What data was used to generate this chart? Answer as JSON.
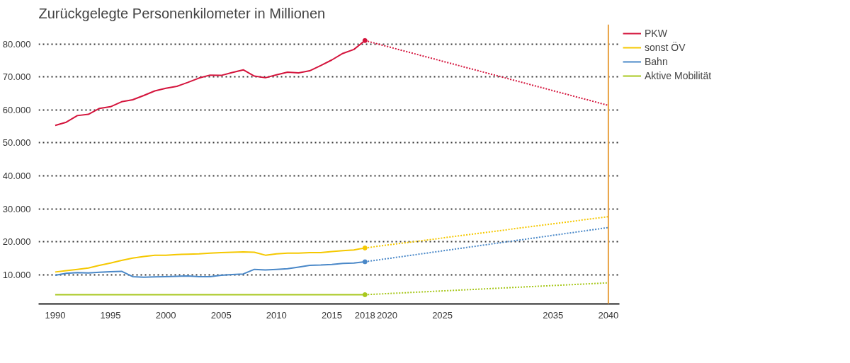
{
  "chart_data": {
    "type": "line",
    "title": "Zurückgelegte Personenkilometer in Millionen",
    "xlim": [
      1988.5,
      2041
    ],
    "xticks": [
      1990,
      1995,
      2000,
      2005,
      2010,
      2015,
      2018,
      2020,
      2025,
      2035,
      2040
    ],
    "ylim": [
      1100,
      86000
    ],
    "yticks": [
      {
        "value": 10000,
        "label": "10.000"
      },
      {
        "value": 20000,
        "label": "20.000"
      },
      {
        "value": 30000,
        "label": "30.000"
      },
      {
        "value": 40000,
        "label": "40.000"
      },
      {
        "value": 50000,
        "label": "50.000"
      },
      {
        "value": 60000,
        "label": "60.000"
      },
      {
        "value": 70000,
        "label": "70.000"
      },
      {
        "value": 80000,
        "label": "80.000"
      }
    ],
    "grid": "y",
    "legend": "top right",
    "line_style": "solid",
    "x": [
      1990,
      1991,
      1992,
      1993,
      1994,
      1995,
      1996,
      1997,
      1998,
      1999,
      2000,
      2001,
      2002,
      2003,
      2004,
      2005,
      2006,
      2007,
      2008,
      2009,
      2010,
      2011,
      2012,
      2013,
      2014,
      2015,
      2016,
      2017,
      2018,
      2040
    ],
    "series": [
      {
        "name": "PKW",
        "color": "#d4143c",
        "values": [
          55300,
          56300,
          58300,
          58700,
          60500,
          61000,
          62500,
          63100,
          64400,
          65800,
          66600,
          67200,
          68400,
          69700,
          70600,
          70500,
          71400,
          72200,
          70300,
          69800,
          70700,
          71500,
          71300,
          71900,
          73500,
          75200,
          77200,
          78400,
          81100,
          null
        ]
      },
      {
        "name": "sonst ÖV",
        "color": "#f5c800",
        "values": [
          10800,
          11200,
          11600,
          12000,
          12800,
          13500,
          14300,
          15000,
          15500,
          15900,
          15900,
          16100,
          16200,
          16300,
          16500,
          16700,
          16800,
          16900,
          16800,
          15900,
          16300,
          16500,
          16500,
          16700,
          16700,
          17000,
          17300,
          17500,
          18100,
          null
        ]
      },
      {
        "name": "Bahn",
        "color": "#4a88c8",
        "values": [
          9800,
          10400,
          10600,
          10500,
          10700,
          10900,
          11000,
          9400,
          9200,
          9300,
          9400,
          9500,
          9600,
          9400,
          9400,
          9800,
          10000,
          10200,
          11600,
          11400,
          11600,
          11800,
          12300,
          12800,
          12900,
          13100,
          13400,
          13500,
          13900,
          null
        ]
      },
      {
        "name": "Aktive Mobilität",
        "color": "#a8c81e",
        "values": [
          3900,
          3900,
          3900,
          3900,
          3900,
          3900,
          3900,
          3900,
          3900,
          3900,
          3900,
          3900,
          3900,
          3900,
          3900,
          3900,
          3900,
          3900,
          3900,
          3900,
          3900,
          3900,
          3900,
          3900,
          3900,
          3900,
          3900,
          3900,
          3900,
          null
        ]
      },
      {
        "color": "#d4143c",
        "line_style": "dotted",
        "values": [
          null,
          null,
          null,
          null,
          null,
          null,
          null,
          null,
          null,
          null,
          null,
          null,
          null,
          null,
          null,
          null,
          null,
          null,
          null,
          null,
          null,
          null,
          null,
          null,
          null,
          null,
          null,
          null,
          81100,
          61400
        ]
      },
      {
        "color": "#f5c800",
        "line_style": "dotted",
        "values": [
          null,
          null,
          null,
          null,
          null,
          null,
          null,
          null,
          null,
          null,
          null,
          null,
          null,
          null,
          null,
          null,
          null,
          null,
          null,
          null,
          null,
          null,
          null,
          null,
          null,
          null,
          null,
          null,
          18100,
          27600
        ]
      },
      {
        "color": "#4a88c8",
        "line_style": "dotted",
        "values": [
          null,
          null,
          null,
          null,
          null,
          null,
          null,
          null,
          null,
          null,
          null,
          null,
          null,
          null,
          null,
          null,
          null,
          null,
          null,
          null,
          null,
          null,
          null,
          null,
          null,
          null,
          null,
          null,
          13900,
          24300
        ]
      },
      {
        "color": "#a8c81e",
        "line_style": "dotted",
        "values": [
          null,
          null,
          null,
          null,
          null,
          null,
          null,
          null,
          null,
          null,
          null,
          null,
          null,
          null,
          null,
          null,
          null,
          null,
          null,
          null,
          null,
          null,
          null,
          null,
          null,
          null,
          null,
          null,
          3900,
          7500
        ]
      }
    ],
    "ref_lines": [
      {
        "axis": "x",
        "value": 2040,
        "color": "#e8a040"
      }
    ]
  }
}
